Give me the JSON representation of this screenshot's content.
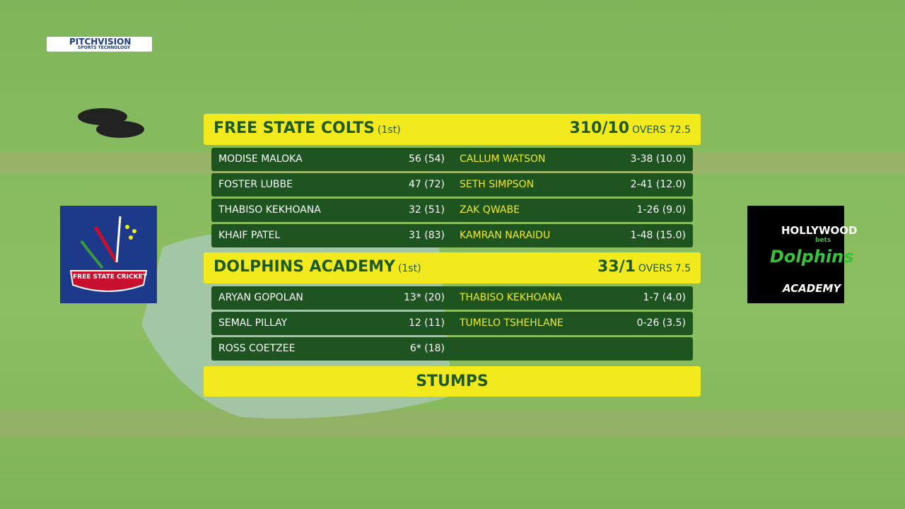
{
  "broadcast_logo": {
    "name": "PITCHVISION",
    "tagline": "SPORTS TECHNOLOGY"
  },
  "home_logo": {
    "text": "FREE STATE CRICKET"
  },
  "away_logo": {
    "line1": "HOLLYWOOD",
    "line2": "bets",
    "line3": "Dolphins",
    "line4": "ACADEMY"
  },
  "innings": [
    {
      "team": "FREE STATE COLTS",
      "innings": "(1st)",
      "score": "310/10",
      "overs_label": "OVERS",
      "overs": "72.5",
      "rows": [
        {
          "batter": "MODISE MALOKA",
          "batting": "56 (54)",
          "bowler": "CALLUM WATSON",
          "bowling": "3-38 (10.0)"
        },
        {
          "batter": "FOSTER LUBBE",
          "batting": "47 (72)",
          "bowler": "SETH SIMPSON",
          "bowling": "2-41 (12.0)"
        },
        {
          "batter": "THABISO KEKHOANA",
          "batting": "32 (51)",
          "bowler": "ZAK QWABE",
          "bowling": "1-26 (9.0)"
        },
        {
          "batter": "KHAIF PATEL",
          "batting": "31 (83)",
          "bowler": "KAMRAN NARAIDU",
          "bowling": "1-48 (15.0)"
        }
      ]
    },
    {
      "team": "DOLPHINS ACADEMY",
      "innings": "(1st)",
      "score": "33/1",
      "overs_label": "OVERS",
      "overs": "7.5",
      "rows": [
        {
          "batter": "ARYAN GOPOLAN",
          "batting": "13* (20)",
          "bowler": "THABISO KEKHOANA",
          "bowling": "1-7 (4.0)"
        },
        {
          "batter": "SEMAL PILLAY",
          "batting": "12 (11)",
          "bowler": "TUMELO TSHEHLANE",
          "bowling": "0-26 (3.5)"
        },
        {
          "batter": "ROSS COETZEE",
          "batting": "6* (18)"
        }
      ]
    }
  ],
  "status": "STUMPS"
}
